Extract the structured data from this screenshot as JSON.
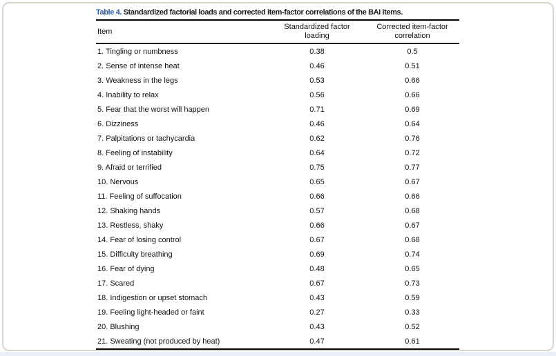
{
  "frame": {
    "border_color": "#d7d5ca",
    "bottom_strip_color": "#e9eff7",
    "rule_color": "#000000"
  },
  "title": {
    "label": "Table 4.",
    "label_color": "#2a5ca8",
    "text": " Standardized factorial loads and corrected item-factor correlations of the BAI items."
  },
  "table": {
    "columns": [
      {
        "key": "item",
        "label": "Item"
      },
      {
        "key": "loading",
        "label": "Standardized factor loading",
        "line1": "Standardized factor",
        "line2": "loading"
      },
      {
        "key": "correlation",
        "label": "Corrected item-factor correlation",
        "line1": "Corrected item-factor",
        "line2": "correlation"
      }
    ],
    "rows": [
      {
        "item": "1. Tingling or numbness",
        "loading": "0.38",
        "correlation": "0.5"
      },
      {
        "item": "2. Sense of intense heat",
        "loading": "0.46",
        "correlation": "0.51"
      },
      {
        "item": "3. Weakness in the legs",
        "loading": "0.53",
        "correlation": "0.66"
      },
      {
        "item": "4. Inability to relax",
        "loading": "0.56",
        "correlation": "0.66"
      },
      {
        "item": "5. Fear that the worst will happen",
        "loading": "0.71",
        "correlation": "0.69"
      },
      {
        "item": "6. Dizziness",
        "loading": "0.46",
        "correlation": "0.64"
      },
      {
        "item": "7. Palpitations or tachycardia",
        "loading": "0.62",
        "correlation": "0.76"
      },
      {
        "item": "8. Feeling of instability",
        "loading": "0.64",
        "correlation": "0.72"
      },
      {
        "item": "9. Afraid or terrified",
        "loading": "0.75",
        "correlation": "0.77"
      },
      {
        "item": "10. Nervous",
        "loading": "0.65",
        "correlation": "0.67"
      },
      {
        "item": "11. Feeling of suffocation",
        "loading": "0.66",
        "correlation": "0.66"
      },
      {
        "item": "12. Shaking hands",
        "loading": "0.57",
        "correlation": "0.68"
      },
      {
        "item": "13. Restless, shaky",
        "loading": "0.66",
        "correlation": "0.67"
      },
      {
        "item": "14. Fear of losing control",
        "loading": "0.67",
        "correlation": "0.68"
      },
      {
        "item": "15. Difficulty breathing",
        "loading": "0.69",
        "correlation": "0.74"
      },
      {
        "item": "16. Fear of dying",
        "loading": "0.48",
        "correlation": "0.65"
      },
      {
        "item": "17. Scared",
        "loading": "0.67",
        "correlation": "0.73"
      },
      {
        "item": "18. Indigestion or upset stomach",
        "loading": "0.43",
        "correlation": "0.59"
      },
      {
        "item": "19. Feeling light-headed or faint",
        "loading": "0.27",
        "correlation": "0.33"
      },
      {
        "item": "20. Blushing",
        "loading": "0.43",
        "correlation": "0.52"
      },
      {
        "item": "21. Sweating (not produced by heat)",
        "loading": "0.47",
        "correlation": "0.61"
      }
    ]
  }
}
